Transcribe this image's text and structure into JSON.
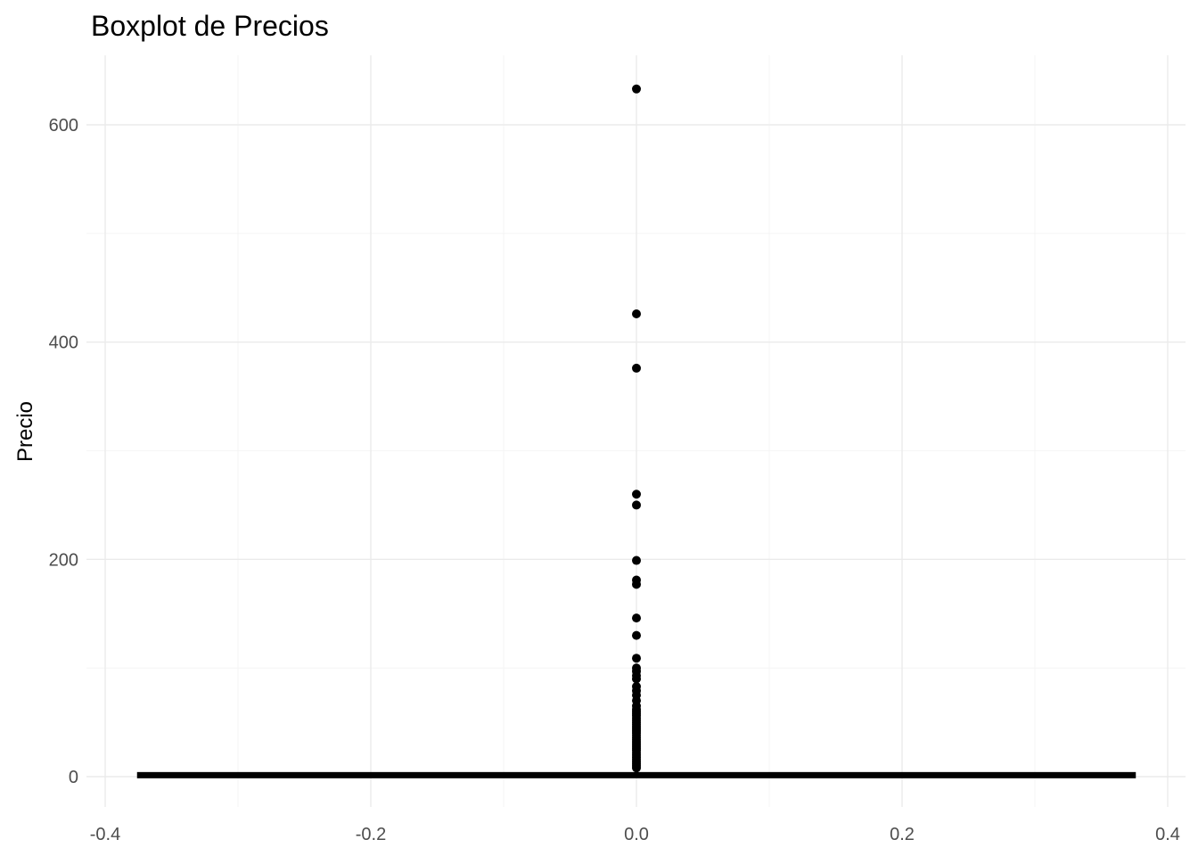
{
  "chart_data": {
    "type": "boxplot",
    "title": "Boxplot de Precios",
    "xlabel": "",
    "ylabel": "Precio",
    "xlim": [
      -0.4,
      0.4
    ],
    "ylim": [
      0,
      650
    ],
    "x_ticks": [
      -0.4,
      -0.2,
      0.0,
      0.2,
      0.4
    ],
    "x_tick_labels": [
      "-0.4",
      "-0.2",
      "0.0",
      "0.2",
      "0.4"
    ],
    "y_ticks": [
      0,
      200,
      400,
      600
    ],
    "y_tick_labels": [
      "0",
      "200",
      "400",
      "600"
    ],
    "grid": true,
    "box": {
      "x": 0.0,
      "x_min": -0.375,
      "x_max": 0.375,
      "lower_whisker": 0,
      "q1": 1,
      "median": 2,
      "q3": 3,
      "upper_whisker": 6
    },
    "outliers": [
      633,
      426,
      376,
      260,
      250,
      199,
      181,
      177,
      146,
      130,
      109,
      100,
      97,
      93,
      90,
      83,
      79,
      75,
      70,
      65,
      62,
      60,
      58,
      56,
      54,
      52,
      50,
      48,
      46,
      44,
      42,
      40,
      38,
      36,
      34,
      32,
      30,
      28,
      26,
      24,
      22,
      20,
      18,
      16,
      14,
      12,
      10,
      8
    ],
    "point_color": "#000000"
  }
}
